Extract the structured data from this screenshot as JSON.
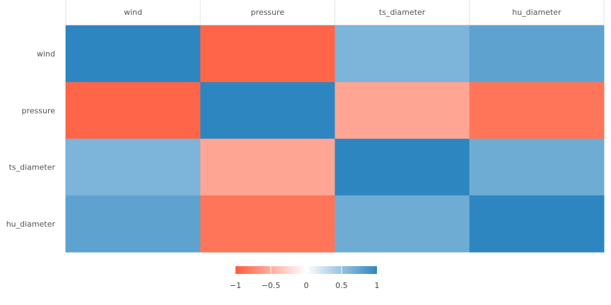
{
  "chart_data": {
    "type": "heatmap",
    "title": "",
    "x_categories": [
      "wind",
      "pressure",
      "ts_diameter",
      "hu_diameter"
    ],
    "y_categories": [
      "wind",
      "pressure",
      "ts_diameter",
      "hu_diameter"
    ],
    "x_axis_position": "top",
    "values": [
      [
        1.0,
        -0.93,
        0.62,
        0.77
      ],
      [
        -0.93,
        1.0,
        -0.55,
        -0.84
      ],
      [
        0.62,
        -0.55,
        1.0,
        0.69
      ],
      [
        0.77,
        -0.84,
        0.69,
        1.0
      ]
    ],
    "color_scale": {
      "min": -1,
      "max": 1,
      "colors": {
        "negative": "#ff5b3b",
        "zero": "#ffffff",
        "positive": "#2e86c1"
      },
      "ticks": [
        -1,
        -0.5,
        0,
        0.5,
        1
      ],
      "tick_labels": [
        "−1",
        "−0.5",
        "0",
        "0.5",
        "1"
      ],
      "legend_placement": "bottom-center"
    },
    "grid": false
  }
}
